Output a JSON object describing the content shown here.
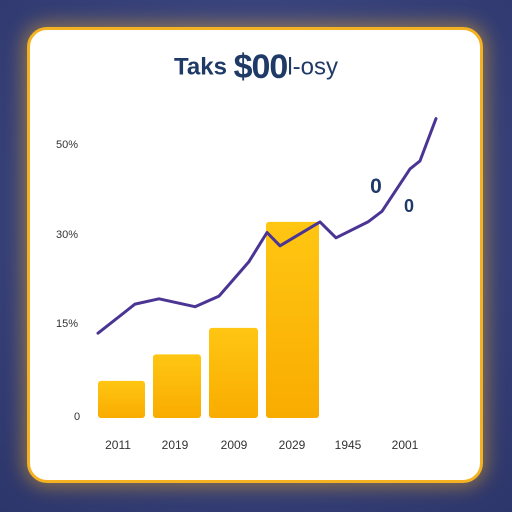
{
  "chart_data": {
    "type": "bar",
    "title_parts": [
      "Taks ",
      "$00",
      "l-osy"
    ],
    "y_tick_labels": [
      "0",
      "15%",
      "30%",
      "50%"
    ],
    "categories": [
      "2011",
      "2019",
      "2009",
      "2029",
      "1945",
      "2001"
    ],
    "bar_values": [
      7,
      12,
      17,
      37,
      null,
      null
    ],
    "line_values": [
      16,
      21.5,
      22.5,
      21,
      23,
      29.5,
      35,
      32.5,
      37,
      34,
      37,
      39,
      47,
      48.5,
      56.5
    ],
    "ylim": [
      0,
      56
    ],
    "annotations": [
      "0",
      "0"
    ],
    "colors": {
      "bar_top": "#ffc612",
      "bar_bottom": "#f9ac00",
      "line": "#4b3594",
      "axis_text": "#333333",
      "annotation": "#1f3a66"
    },
    "grid": false,
    "legend": "none"
  }
}
